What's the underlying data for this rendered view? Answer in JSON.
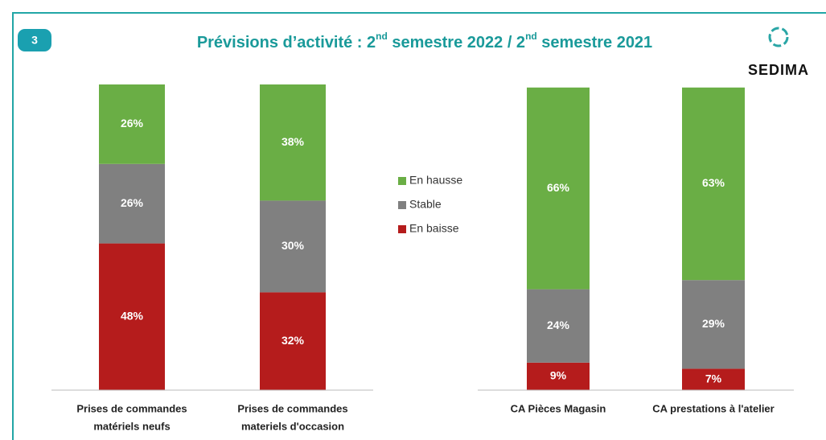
{
  "slide": {
    "number": "3",
    "title": [
      "Prévisions d’activité : 2",
      "nd",
      " semestre 2022 / 2",
      "nd",
      " semestre 2021"
    ],
    "logo": "SEDIMA"
  },
  "chart_data": [
    {
      "type": "bar",
      "stacked": true,
      "legend": "right",
      "ylim": [
        0,
        100
      ],
      "categories": [
        [
          "Prises de commandes",
          "matériels neufs"
        ],
        [
          "Prises de commandes",
          "materiels d'occasion"
        ]
      ],
      "series": [
        {
          "name": "En baisse",
          "color": "#b51c1c",
          "values": [
            48,
            32
          ],
          "value_labels": [
            "48%",
            "32%"
          ]
        },
        {
          "name": "Stable",
          "color": "#808080",
          "values": [
            26,
            30
          ],
          "value_labels": [
            "26%",
            "30%"
          ]
        },
        {
          "name": "En hausse",
          "color": "#6aae45",
          "values": [
            26,
            38
          ],
          "value_labels": [
            "26%",
            "38%"
          ]
        }
      ]
    },
    {
      "type": "bar",
      "stacked": true,
      "ylim": [
        0,
        100
      ],
      "categories": [
        [
          "CA Pièces Magasin"
        ],
        [
          "CA prestations à l'atelier"
        ]
      ],
      "series": [
        {
          "name": "En baisse",
          "color": "#b51c1c",
          "values": [
            9,
            7
          ],
          "value_labels": [
            "9%",
            "7%"
          ]
        },
        {
          "name": "Stable",
          "color": "#808080",
          "values": [
            24,
            29
          ],
          "value_labels": [
            "24%",
            "29%"
          ]
        },
        {
          "name": "En hausse",
          "color": "#6aae45",
          "values": [
            66,
            63
          ],
          "value_labels": [
            "66%",
            "63%"
          ]
        }
      ]
    }
  ]
}
